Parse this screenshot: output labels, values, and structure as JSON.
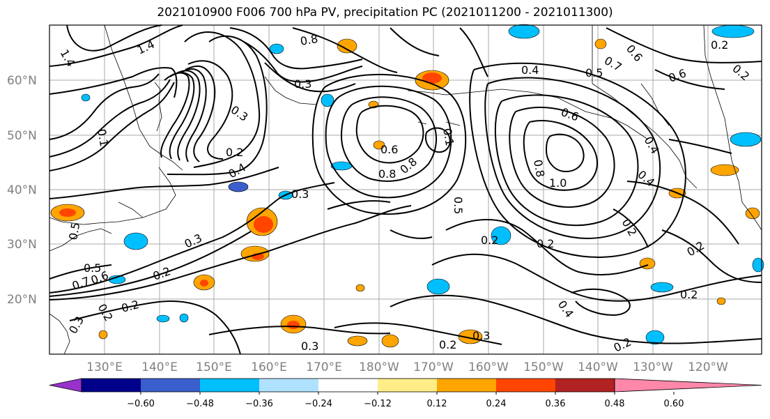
{
  "title": "2021010900 F006 700 hPa PV, precipitation PC (2021011200 - 2021011300)",
  "lat_labels": [
    "60°N",
    "50°N",
    "40°N",
    "30°N",
    "20°N"
  ],
  "lon_labels": [
    "130°E",
    "140°E",
    "150°E",
    "160°E",
    "170°E",
    "180°W",
    "170°W",
    "160°W",
    "150°W",
    "140°W",
    "130°W",
    "120°W"
  ],
  "contour_labels": [
    "1.4",
    "1.4",
    "0.8",
    "0.7",
    "0.6",
    "0.2",
    "0.4",
    "0.5",
    "0.6",
    "0.3",
    "0.3",
    "0.1",
    "0.2",
    "0.4",
    "0.3",
    "0.6",
    "0.8",
    "0.8",
    "0.6",
    "0.1",
    "0.8",
    "1.0",
    "0.5",
    "0.4",
    "0.4",
    "0.2",
    "0.2",
    "0.2",
    "0.2",
    "0.2",
    "0.3",
    "0.2",
    "0.2",
    "0.2",
    "0.3",
    "0.3",
    "0.4",
    "0.2",
    "0.2",
    "0.5",
    "0.5",
    "0.7",
    "0.6",
    "0.3",
    "0.2"
  ],
  "colorbar": {
    "colors": [
      "#9932cc",
      "#00008b",
      "#3a5fcd",
      "#00bfff",
      "#b0e2ff",
      "#ffffff",
      "#ffee88",
      "#ffa500",
      "#ff4500",
      "#b22222",
      "#ff88aa"
    ],
    "ticks": [
      "−0.60",
      "−0.48",
      "−0.36",
      "−0.24",
      "−0.12",
      "0.12",
      "0.24",
      "0.36",
      "0.48",
      "0.60"
    ]
  }
}
